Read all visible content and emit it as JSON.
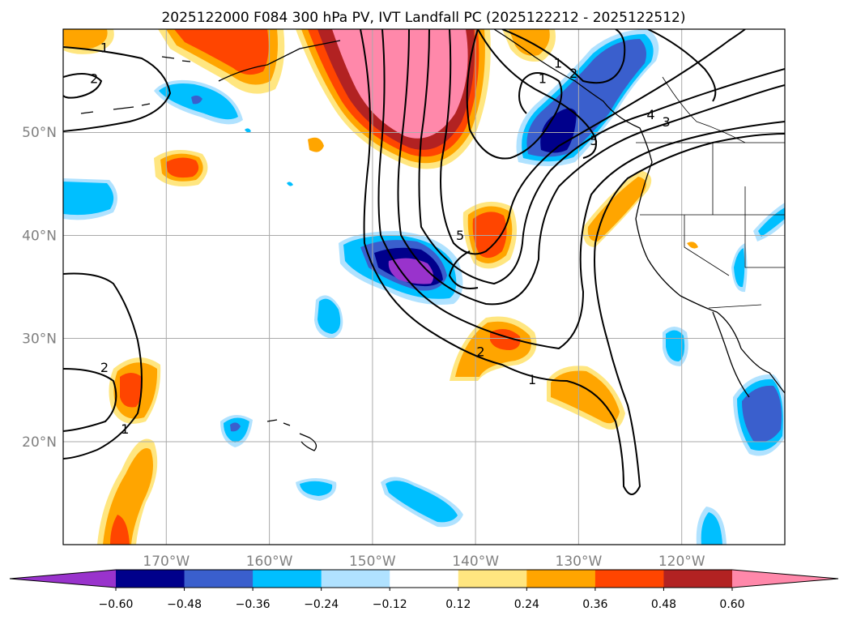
{
  "title": "2025122000 F084 300 hPa PV, IVT Landfall PC (2025122212 - 2025122512)",
  "lat_ticks": [
    {
      "lat": 50,
      "label": "50°N"
    },
    {
      "lat": 40,
      "label": "40°N"
    },
    {
      "lat": 30,
      "label": "30°N"
    },
    {
      "lat": 20,
      "label": "20°N"
    }
  ],
  "lon_ticks": [
    {
      "lon": -170,
      "label": "170°W"
    },
    {
      "lon": -160,
      "label": "160°W"
    },
    {
      "lon": -150,
      "label": "150°W"
    },
    {
      "lon": -140,
      "label": "140°W"
    },
    {
      "lon": -130,
      "label": "130°W"
    },
    {
      "lon": -120,
      "label": "120°W"
    }
  ],
  "map_extent": {
    "lon_min": -180,
    "lon_max": -110,
    "lat_min": 10,
    "lat_max": 60
  },
  "colorbar": {
    "levels": [
      "−0.60",
      "−0.48",
      "−0.36",
      "−0.24",
      "−0.12",
      "0.12",
      "0.24",
      "0.36",
      "0.48",
      "0.60"
    ],
    "colors": [
      "#9933cc",
      "#00008b",
      "#3a5fcd",
      "#00bfff",
      "#b0e2ff",
      "#ffffff",
      "#ffe680",
      "#ffa500",
      "#ff4500",
      "#b22222",
      "#ff88aa"
    ],
    "extend": "both"
  },
  "contour_labels": [
    {
      "text": "1",
      "lon": -176,
      "lat": 58
    },
    {
      "text": "2",
      "lon": -177,
      "lat": 55
    },
    {
      "text": "1",
      "lon": -133.5,
      "lat": 55
    },
    {
      "text": "1",
      "lon": -132,
      "lat": 56.5
    },
    {
      "text": "2",
      "lon": -130.5,
      "lat": 55.5
    },
    {
      "text": "4",
      "lon": -123,
      "lat": 51.5
    },
    {
      "text": "3",
      "lon": -121.5,
      "lat": 50.8
    },
    {
      "text": "5",
      "lon": -128.5,
      "lat": 49
    },
    {
      "text": "5",
      "lon": -141.5,
      "lat": 39.8
    },
    {
      "text": "2",
      "lon": -139.5,
      "lat": 28.5
    },
    {
      "text": "1",
      "lon": -134.5,
      "lat": 25.8
    },
    {
      "text": "2",
      "lon": -176,
      "lat": 27
    },
    {
      "text": "1",
      "lon": -174,
      "lat": 21
    }
  ]
}
